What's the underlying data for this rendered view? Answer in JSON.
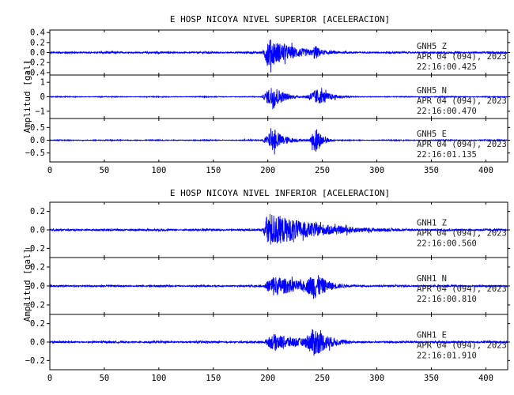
{
  "chart_data": [
    {
      "type": "line",
      "title": "E HOSP NICOYA NIVEL SUPERIOR [ACELERACION]",
      "ylabel": "Amplitud  [gal]",
      "xlim": [
        0,
        420
      ],
      "x_ticks": [
        0,
        50,
        100,
        150,
        200,
        250,
        300,
        350,
        400
      ],
      "x_tick_labels": [
        "0",
        "50",
        "100",
        "150",
        "200",
        "250",
        "300",
        "350",
        "400"
      ],
      "trace_color": "#0000ff",
      "panels": [
        {
          "channel": "GNH5   Z",
          "date": "APR 04 (094), 2023",
          "time": "22:16:00.425",
          "ylim": [
            -0.45,
            0.45
          ],
          "y_ticks": [
            0.4,
            0.2,
            0.0,
            -0.2,
            -0.4
          ],
          "y_tick_labels": [
            "0.4",
            "0.2",
            "0.0",
            "−0.2",
            "−0.4"
          ],
          "peak_amplitude": 0.42,
          "pre_event_noise": 0.02,
          "envelope": [
            {
              "start": 195,
              "peak": 200,
              "end": 275,
              "amp": 0.4
            },
            {
              "start": 240,
              "peak": 243,
              "end": 262,
              "amp": 0.22
            }
          ]
        },
        {
          "channel": "GNH5   N",
          "date": "APR 04 (094), 2023",
          "time": "22:16:00.470",
          "ylim": [
            -1.5,
            1.5
          ],
          "y_ticks": [
            1,
            0,
            -1
          ],
          "y_tick_labels": [
            "1",
            "0",
            "−1"
          ],
          "peak_amplitude": 1.3,
          "pre_event_noise": 0.03,
          "envelope": [
            {
              "start": 194,
              "peak": 205,
              "end": 232,
              "amp": 1.2
            },
            {
              "start": 232,
              "peak": 246,
              "end": 282,
              "amp": 0.75
            }
          ]
        },
        {
          "channel": "GNH5   E",
          "date": "APR 04 (094), 2023",
          "time": "22:16:01.135",
          "ylim": [
            -0.85,
            0.85
          ],
          "y_ticks": [
            0.5,
            0.0,
            -0.5
          ],
          "y_tick_labels": [
            "0.5",
            "0.0",
            "−0.5"
          ],
          "peak_amplitude": 0.75,
          "pre_event_noise": 0.02,
          "envelope": [
            {
              "start": 194,
              "peak": 205,
              "end": 240,
              "amp": 0.55
            },
            {
              "start": 238,
              "peak": 244,
              "end": 262,
              "amp": 0.75
            }
          ]
        }
      ]
    },
    {
      "type": "line",
      "title": "E HOSP NICOYA NIVEL INFERIOR [ACELERACION]",
      "ylabel": "Amplitud  [gal]",
      "xlim": [
        0,
        420
      ],
      "x_ticks": [
        0,
        50,
        100,
        150,
        200,
        250,
        300,
        350,
        400
      ],
      "x_tick_labels": [
        "0",
        "50",
        "100",
        "150",
        "200",
        "250",
        "300",
        "350",
        "400"
      ],
      "trace_color": "#0000ff",
      "panels": [
        {
          "channel": "GNH1   Z",
          "date": "APR 04 (094), 2023",
          "time": "22:16:00.560",
          "ylim": [
            -0.3,
            0.3
          ],
          "y_ticks": [
            0.2,
            0.0,
            -0.2
          ],
          "y_tick_labels": [
            "0.2",
            "0.0",
            "−0.2"
          ],
          "peak_amplitude": 0.27,
          "pre_event_noise": 0.012,
          "envelope": [
            {
              "start": 195,
              "peak": 200,
              "end": 330,
              "amp": 0.26
            },
            {
              "start": 238,
              "peak": 243,
              "end": 260,
              "amp": 0.12
            }
          ]
        },
        {
          "channel": "GNH1   N",
          "date": "APR 04 (094), 2023",
          "time": "22:16:00.810",
          "ylim": [
            -0.3,
            0.3
          ],
          "y_ticks": [
            0.2,
            0.0,
            -0.2
          ],
          "y_tick_labels": [
            "0.2",
            "0.0",
            "−0.2"
          ],
          "peak_amplitude": 0.25,
          "pre_event_noise": 0.01,
          "envelope": [
            {
              "start": 195,
              "peak": 205,
              "end": 300,
              "amp": 0.15
            },
            {
              "start": 230,
              "peak": 243,
              "end": 280,
              "amp": 0.2
            }
          ]
        },
        {
          "channel": "GNH1   E",
          "date": "APR 04 (094), 2023",
          "time": "22:16:01.910",
          "ylim": [
            -0.3,
            0.3
          ],
          "y_ticks": [
            0.2,
            0.0,
            -0.2
          ],
          "y_tick_labels": [
            "0.2",
            "0.0",
            "−0.2"
          ],
          "peak_amplitude": 0.26,
          "pre_event_noise": 0.012,
          "envelope": [
            {
              "start": 195,
              "peak": 205,
              "end": 310,
              "amp": 0.12
            },
            {
              "start": 230,
              "peak": 243,
              "end": 285,
              "amp": 0.22
            }
          ]
        }
      ]
    }
  ]
}
